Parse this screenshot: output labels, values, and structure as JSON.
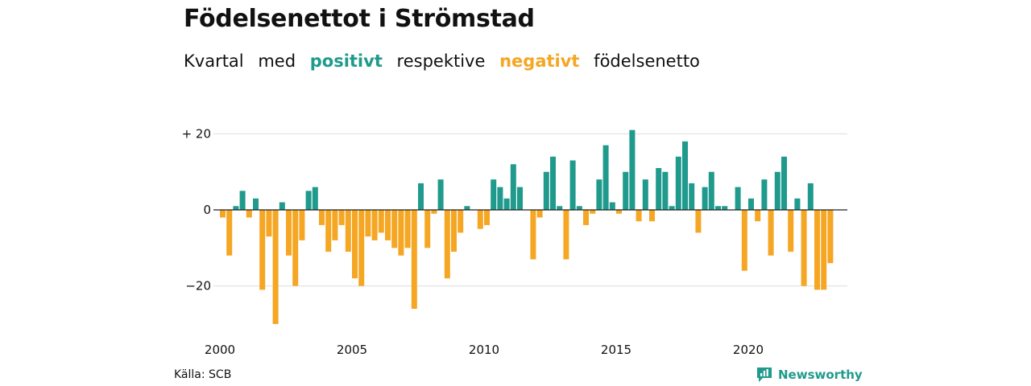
{
  "title": "Födelsenettot i Strömstad",
  "subtitle": {
    "w1": "Kvartal",
    "w2": "med",
    "positive": "positivt",
    "w3": "respektive",
    "negative": "negativt",
    "w4": "födelsenetto"
  },
  "source": "Källa: SCB",
  "brand": "Newsworthy",
  "colors": {
    "positive": "#1f9a8c",
    "negative": "#f5a623",
    "grid": "#dddddd",
    "zero": "#222222"
  },
  "chart_data": {
    "type": "bar",
    "xlabel": "",
    "ylabel": "",
    "ylim": [
      -30,
      22
    ],
    "yticks": [
      {
        "value": 20,
        "label": "+ 20"
      },
      {
        "value": 0,
        "label": "0"
      },
      {
        "value": -20,
        "label": "−20"
      }
    ],
    "xticks": [
      "2000",
      "2005",
      "2010",
      "2015",
      "2020"
    ],
    "start_year": 2000,
    "quarters_per_year": 4,
    "values": [
      -2,
      -12,
      1,
      5,
      -2,
      3,
      -21,
      -7,
      -30,
      2,
      -12,
      -20,
      -8,
      5,
      6,
      -4,
      -11,
      -8,
      -4,
      -11,
      -18,
      -20,
      -7,
      -8,
      -6,
      -8,
      -10,
      -12,
      -10,
      -26,
      7,
      -10,
      -1,
      8,
      -18,
      -11,
      -6,
      1,
      0,
      -5,
      -4,
      8,
      6,
      3,
      12,
      6,
      0,
      -13,
      -2,
      10,
      14,
      1,
      -13,
      13,
      1,
      -4,
      -1,
      8,
      17,
      2,
      -1,
      10,
      21,
      -3,
      8,
      -3,
      11,
      10,
      1,
      14,
      18,
      7,
      -6,
      6,
      10,
      1,
      1,
      0,
      6,
      -16,
      3,
      -3,
      8,
      -12,
      10,
      14,
      -11,
      3,
      -20,
      7,
      -21,
      -21,
      -14
    ]
  }
}
